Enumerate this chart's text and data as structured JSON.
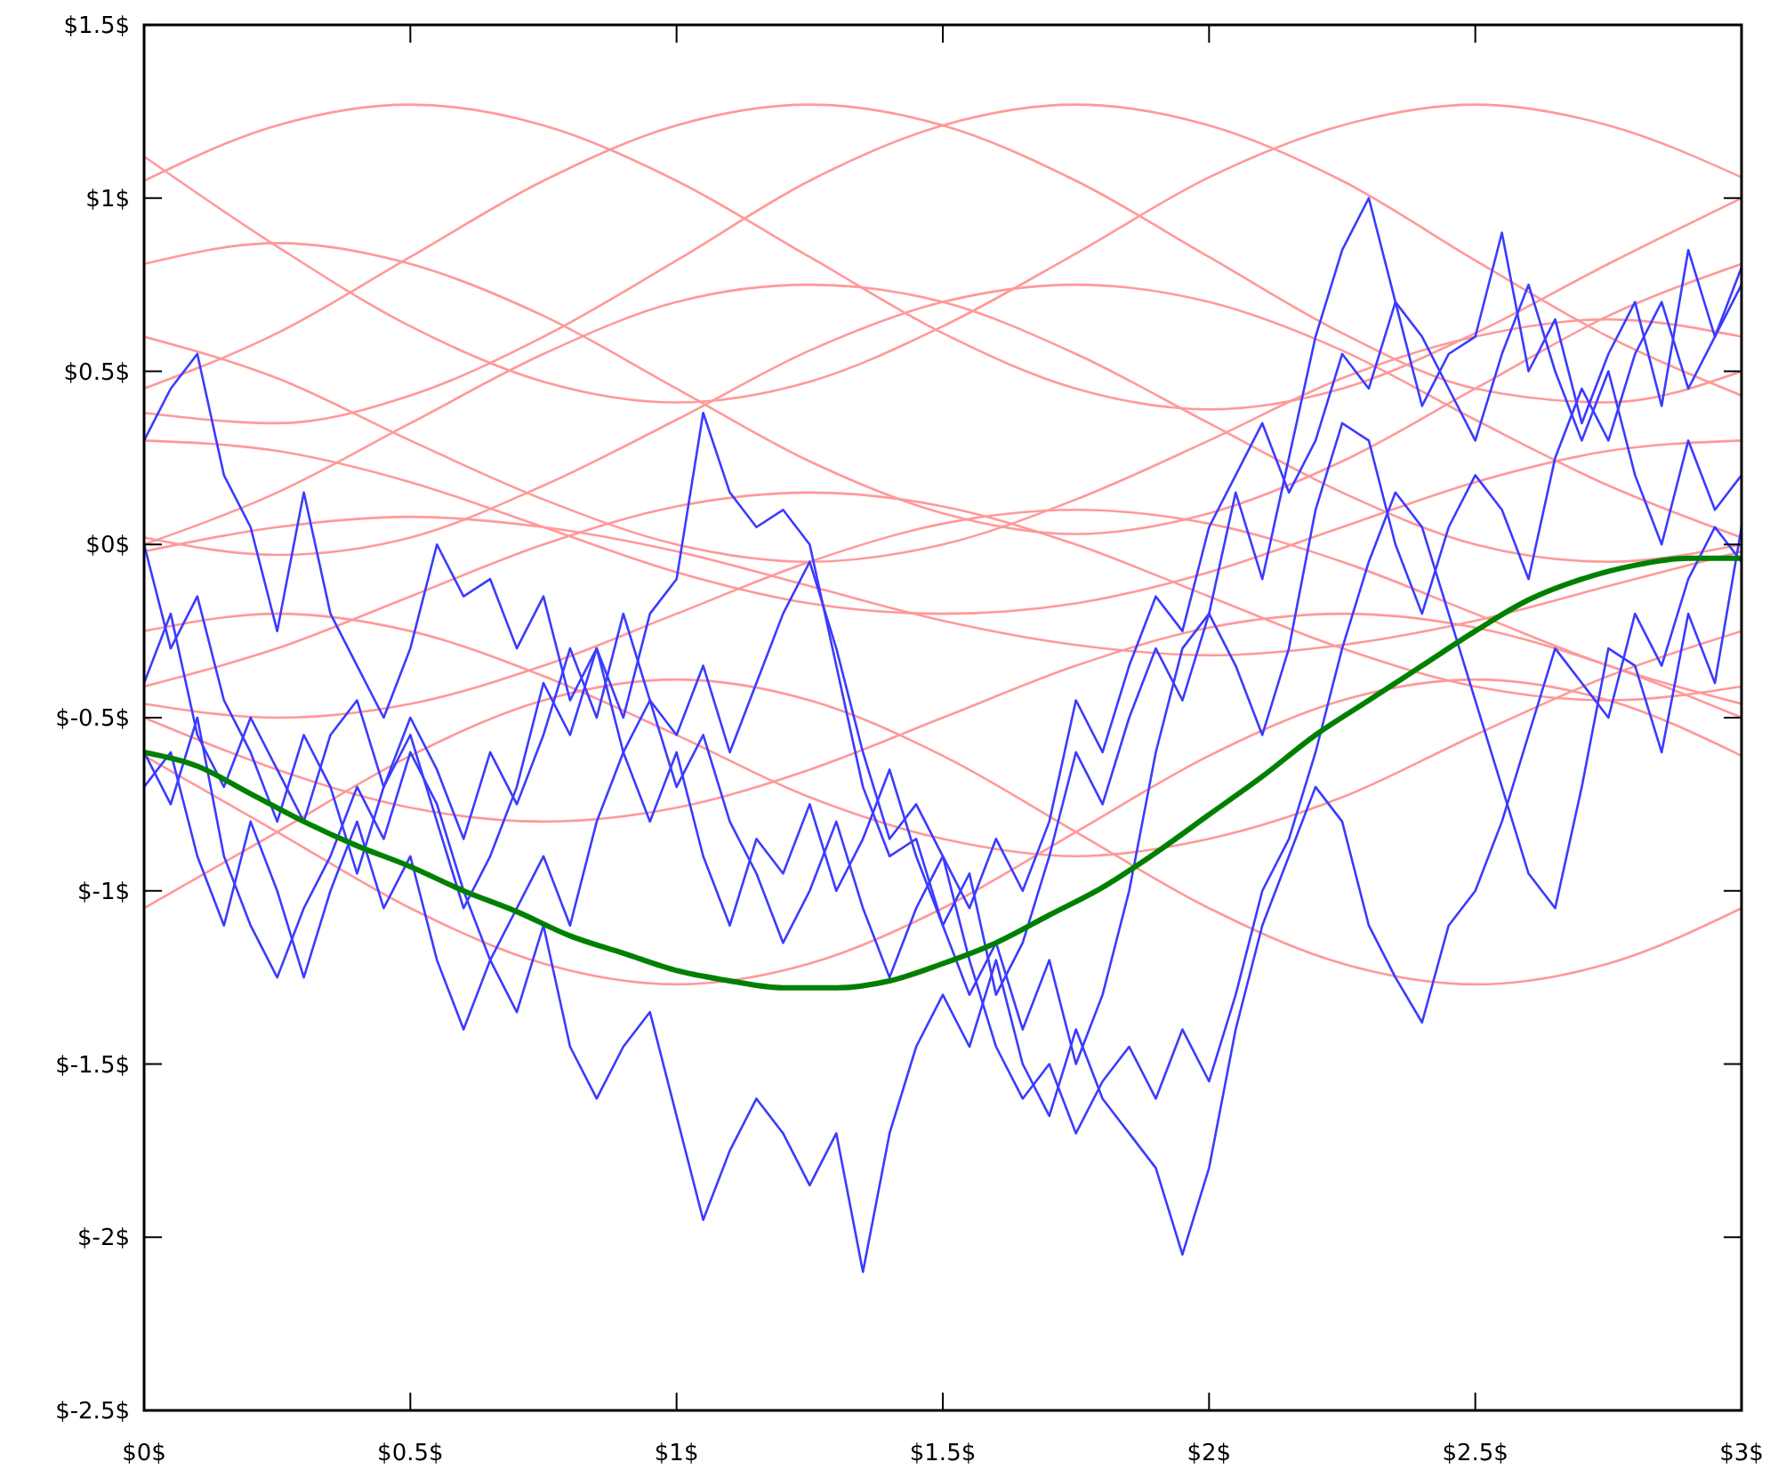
{
  "chart_data": {
    "type": "line",
    "xlim": [
      0,
      3
    ],
    "ylim": [
      -2.5,
      1.5
    ],
    "xticks": [
      {
        "value": 0,
        "label": "$0$"
      },
      {
        "value": 0.5,
        "label": "$0.5$"
      },
      {
        "value": 1,
        "label": "$1$"
      },
      {
        "value": 1.5,
        "label": "$1.5$"
      },
      {
        "value": 2,
        "label": "$2$"
      },
      {
        "value": 2.5,
        "label": "$2.5$"
      },
      {
        "value": 3,
        "label": "$3$"
      }
    ],
    "yticks": [
      {
        "value": -2.5,
        "label": "$-2.5$"
      },
      {
        "value": -2,
        "label": "$-2$"
      },
      {
        "value": -1.5,
        "label": "$-1.5$"
      },
      {
        "value": -1,
        "label": "$-1$"
      },
      {
        "value": -0.5,
        "label": "$-0.5$"
      },
      {
        "value": 0,
        "label": "$0$"
      },
      {
        "value": 0.5,
        "label": "$0.5$"
      },
      {
        "value": 1,
        "label": "$1$"
      },
      {
        "value": 1.5,
        "label": "$1.5$"
      }
    ],
    "grid": false,
    "marker": "none",
    "line_style": "solid",
    "x": [
      0,
      0.05,
      0.1,
      0.15,
      0.2,
      0.25,
      0.3,
      0.35,
      0.4,
      0.45,
      0.5,
      0.55,
      0.6,
      0.65,
      0.7,
      0.75,
      0.8,
      0.85,
      0.9,
      0.95,
      1,
      1.05,
      1.1,
      1.15,
      1.2,
      1.25,
      1.3,
      1.35,
      1.4,
      1.45,
      1.5,
      1.55,
      1.6,
      1.65,
      1.7,
      1.75,
      1.8,
      1.85,
      1.9,
      1.95,
      2,
      2.05,
      2.1,
      2.15,
      2.2,
      2.25,
      2.3,
      2.35,
      2.4,
      2.45,
      2.5,
      2.55,
      2.6,
      2.65,
      2.7,
      2.75,
      2.8,
      2.85,
      2.9,
      2.95,
      3
    ],
    "series": [
      {
        "color": "#ff9999",
        "x": [
          0,
          0.25,
          0.5,
          0.75,
          1,
          1.25,
          1.5,
          1.75,
          2,
          2.25,
          2.5,
          2.75,
          3
        ],
        "values": [
          1.05,
          1.21,
          1.27,
          1.21,
          1.05,
          0.83,
          0.61,
          0.45,
          0.39,
          0.45,
          0.61,
          0.81,
          1.0
        ]
      },
      {
        "color": "#ff9999",
        "x": [
          0,
          0.25,
          0.5,
          0.75,
          1,
          1.25,
          1.5,
          1.75,
          2,
          2.25,
          2.5,
          2.75,
          3
        ],
        "values": [
          0.45,
          0.61,
          0.83,
          1.05,
          1.21,
          1.27,
          1.21,
          1.05,
          0.83,
          0.61,
          0.45,
          0.41,
          0.5
        ]
      },
      {
        "color": "#ff9999",
        "x": [
          0,
          0.25,
          0.5,
          0.75,
          1,
          1.25,
          1.5,
          1.75,
          2,
          2.25,
          2.5,
          2.75,
          3
        ],
        "values": [
          0.38,
          0.35,
          0.43,
          0.6,
          0.82,
          1.05,
          1.21,
          1.27,
          1.21,
          1.05,
          0.82,
          0.6,
          0.43
        ]
      },
      {
        "color": "#ff9999",
        "x": [
          0,
          0.25,
          0.5,
          0.75,
          1,
          1.25,
          1.5,
          1.75,
          2,
          2.25,
          2.5,
          2.75,
          3
        ],
        "values": [
          1.12,
          0.86,
          0.63,
          0.47,
          0.41,
          0.47,
          0.63,
          0.84,
          1.06,
          1.21,
          1.27,
          1.21,
          1.06
        ]
      },
      {
        "color": "#ff9999",
        "x": [
          0,
          0.25,
          0.5,
          0.75,
          1,
          1.25,
          1.5,
          1.75,
          2,
          2.25,
          2.5,
          2.75,
          3
        ],
        "values": [
          -0.61,
          -0.83,
          -1.05,
          -1.21,
          -1.27,
          -1.21,
          -1.05,
          -0.83,
          -0.61,
          -0.45,
          -0.39,
          -0.45,
          -0.61
        ]
      },
      {
        "color": "#ff9999",
        "x": [
          0,
          0.25,
          0.5,
          0.75,
          1,
          1.25,
          1.5,
          1.75,
          2,
          2.25,
          2.5,
          2.75,
          3
        ],
        "values": [
          -1.05,
          -0.83,
          -0.61,
          -0.45,
          -0.39,
          -0.45,
          -0.61,
          -0.83,
          -1.05,
          -1.21,
          -1.27,
          -1.21,
          -1.05
        ]
      },
      {
        "color": "#ff9999",
        "x": [
          0,
          0.25,
          0.5,
          0.75,
          1,
          1.25,
          1.5,
          1.75,
          2,
          2.25,
          2.5,
          2.75,
          3
        ],
        "values": [
          -0.25,
          -0.2,
          -0.25,
          -0.38,
          -0.55,
          -0.73,
          -0.85,
          -0.9,
          -0.85,
          -0.73,
          -0.55,
          -0.38,
          -0.25
        ]
      },
      {
        "color": "#ff9999",
        "x": [
          0,
          0.25,
          0.5,
          0.75,
          1,
          1.25,
          1.5,
          1.75,
          2,
          2.25,
          2.5,
          2.75,
          3
        ],
        "values": [
          -0.5,
          -0.65,
          -0.76,
          -0.8,
          -0.76,
          -0.65,
          -0.5,
          -0.35,
          -0.24,
          -0.2,
          -0.24,
          -0.35,
          -0.5
        ]
      },
      {
        "color": "#ff9999",
        "x": [
          0,
          0.25,
          0.5,
          0.75,
          1,
          1.25,
          1.5,
          1.75,
          2,
          2.25,
          2.5,
          2.75,
          3
        ],
        "values": [
          0.81,
          0.87,
          0.81,
          0.66,
          0.45,
          0.24,
          0.09,
          0.03,
          0.09,
          0.24,
          0.45,
          0.66,
          0.81
        ]
      },
      {
        "color": "#ff9999",
        "x": [
          0,
          0.25,
          0.5,
          0.75,
          1,
          1.25,
          1.5,
          1.75,
          2,
          2.25,
          2.5,
          2.75,
          3
        ],
        "values": [
          0.0,
          0.15,
          0.35,
          0.55,
          0.7,
          0.75,
          0.7,
          0.55,
          0.35,
          0.15,
          0.0,
          -0.05,
          0.0
        ]
      },
      {
        "color": "#ff9999",
        "x": [
          0,
          0.25,
          0.5,
          0.75,
          1,
          1.25,
          1.5,
          1.75,
          2,
          2.25,
          2.5,
          2.75,
          3
        ],
        "values": [
          0.02,
          -0.03,
          0.02,
          0.17,
          0.36,
          0.56,
          0.7,
          0.75,
          0.7,
          0.56,
          0.36,
          0.17,
          0.02
        ]
      },
      {
        "color": "#ff9999",
        "x": [
          0,
          0.25,
          0.5,
          0.75,
          1,
          1.25,
          1.5,
          1.75,
          2,
          2.25,
          2.5,
          2.75,
          3
        ],
        "values": [
          0.6,
          0.48,
          0.3,
          0.13,
          0.0,
          -0.05,
          0.0,
          0.13,
          0.3,
          0.48,
          0.6,
          0.65,
          0.6
        ]
      },
      {
        "color": "#ff9999",
        "x": [
          0,
          0.25,
          0.5,
          0.75,
          1,
          1.25,
          1.5,
          1.75,
          2,
          2.25,
          2.5,
          2.75,
          3
        ],
        "values": [
          0.3,
          0.27,
          0.18,
          0.05,
          -0.08,
          -0.17,
          -0.2,
          -0.17,
          -0.08,
          0.05,
          0.18,
          0.27,
          0.3
        ]
      },
      {
        "color": "#ff9999",
        "x": [
          0,
          0.25,
          0.5,
          0.75,
          1,
          1.25,
          1.5,
          1.75,
          2,
          2.25,
          2.5,
          2.75,
          3
        ],
        "values": [
          -0.41,
          -0.3,
          -0.15,
          0.0,
          0.11,
          0.15,
          0.11,
          0.0,
          -0.15,
          -0.3,
          -0.41,
          -0.45,
          -0.41
        ]
      },
      {
        "color": "#ff9999",
        "x": [
          0,
          0.25,
          0.5,
          0.75,
          1,
          1.25,
          1.5,
          1.75,
          2,
          2.25,
          2.5,
          2.75,
          3
        ],
        "values": [
          -0.46,
          -0.5,
          -0.46,
          -0.35,
          -0.2,
          -0.05,
          0.06,
          0.1,
          0.06,
          -0.05,
          -0.2,
          -0.35,
          -0.46
        ]
      },
      {
        "color": "#ff9999",
        "x": [
          0,
          0.25,
          0.5,
          0.75,
          1,
          1.25,
          1.5,
          1.75,
          2,
          2.25,
          2.5,
          2.75,
          3
        ],
        "values": [
          -0.02,
          0.05,
          0.08,
          0.05,
          -0.02,
          -0.12,
          -0.22,
          -0.29,
          -0.32,
          -0.29,
          -0.22,
          -0.12,
          -0.02
        ]
      },
      {
        "color": "#3b3bff",
        "values": [
          0.3,
          0.45,
          0.55,
          0.2,
          0.05,
          -0.25,
          0.15,
          -0.2,
          -0.35,
          -0.5,
          -0.3,
          0.0,
          -0.15,
          -0.1,
          -0.3,
          -0.15,
          -0.45,
          -0.3,
          -0.5,
          -0.2,
          -0.1,
          0.38,
          0.15,
          0.05,
          0.1,
          0.0,
          -0.35,
          -0.7,
          -0.9,
          -0.85,
          -1.1,
          -1.3,
          -1.15,
          -1.4,
          -1.2,
          -1.5,
          -1.3,
          -1.0,
          -0.6,
          -0.3,
          -0.2,
          0.15,
          -0.1,
          0.25,
          0.6,
          0.85,
          1.0,
          0.7,
          0.4,
          0.55,
          0.6,
          0.9,
          0.5,
          0.65,
          0.35,
          0.55,
          0.7,
          0.4,
          0.85,
          0.6,
          0.75
        ]
      },
      {
        "color": "#3b3bff",
        "values": [
          -0.7,
          -0.6,
          -0.9,
          -1.1,
          -0.8,
          -1.0,
          -1.25,
          -1.0,
          -0.8,
          -1.05,
          -0.9,
          -1.2,
          -1.4,
          -1.2,
          -1.35,
          -1.1,
          -1.45,
          -1.6,
          -1.45,
          -1.35,
          -1.65,
          -1.95,
          -1.75,
          -1.6,
          -1.7,
          -1.85,
          -1.7,
          -2.1,
          -1.7,
          -1.45,
          -1.3,
          -1.45,
          -1.2,
          -1.5,
          -1.65,
          -1.4,
          -1.6,
          -1.7,
          -1.8,
          -2.05,
          -1.8,
          -1.4,
          -1.1,
          -0.9,
          -0.7,
          -0.8,
          -1.1,
          -1.25,
          -1.38,
          -1.1,
          -1.0,
          -0.8,
          -0.55,
          -0.3,
          -0.4,
          -0.5,
          -0.2,
          -0.35,
          -0.1,
          0.05,
          -0.05
        ]
      },
      {
        "color": "#3b3bff",
        "values": [
          -0.4,
          -0.2,
          -0.55,
          -0.7,
          -0.5,
          -0.65,
          -0.8,
          -0.55,
          -0.45,
          -0.7,
          -0.55,
          -0.8,
          -1.05,
          -0.9,
          -0.7,
          -0.4,
          -0.55,
          -0.3,
          -0.6,
          -0.8,
          -0.6,
          -0.9,
          -1.1,
          -0.85,
          -0.95,
          -0.75,
          -1.0,
          -0.85,
          -0.65,
          -0.9,
          -1.1,
          -0.95,
          -1.3,
          -1.15,
          -0.9,
          -0.6,
          -0.75,
          -0.5,
          -0.3,
          -0.45,
          -0.2,
          -0.35,
          -0.55,
          -0.3,
          0.1,
          0.35,
          0.3,
          0.0,
          -0.2,
          0.05,
          0.2,
          0.1,
          -0.1,
          0.25,
          0.45,
          0.3,
          0.55,
          0.7,
          0.45,
          0.6,
          0.8
        ]
      },
      {
        "color": "#3b3bff",
        "values": [
          -0.6,
          -0.75,
          -0.5,
          -0.9,
          -1.1,
          -1.25,
          -1.05,
          -0.9,
          -0.7,
          -0.85,
          -0.6,
          -0.75,
          -1.0,
          -1.2,
          -1.05,
          -0.9,
          -1.1,
          -0.8,
          -0.6,
          -0.45,
          -0.7,
          -0.55,
          -0.8,
          -0.95,
          -1.15,
          -1.0,
          -0.8,
          -1.05,
          -1.25,
          -1.05,
          -0.9,
          -1.2,
          -1.45,
          -1.6,
          -1.5,
          -1.7,
          -1.55,
          -1.45,
          -1.6,
          -1.4,
          -1.55,
          -1.3,
          -1.0,
          -0.85,
          -0.6,
          -0.3,
          -0.05,
          0.15,
          0.05,
          -0.2,
          -0.45,
          -0.7,
          -0.95,
          -1.05,
          -0.7,
          -0.3,
          -0.35,
          -0.6,
          -0.2,
          -0.4,
          0.05
        ]
      },
      {
        "color": "#3b3bff",
        "values": [
          0.0,
          -0.3,
          -0.15,
          -0.45,
          -0.6,
          -0.8,
          -0.55,
          -0.7,
          -0.95,
          -0.7,
          -0.5,
          -0.65,
          -0.85,
          -0.6,
          -0.75,
          -0.55,
          -0.3,
          -0.5,
          -0.2,
          -0.45,
          -0.55,
          -0.35,
          -0.6,
          -0.4,
          -0.2,
          -0.05,
          -0.3,
          -0.6,
          -0.85,
          -0.75,
          -0.9,
          -1.05,
          -0.85,
          -1.0,
          -0.8,
          -0.45,
          -0.6,
          -0.35,
          -0.15,
          -0.25,
          0.05,
          0.2,
          0.35,
          0.15,
          0.3,
          0.55,
          0.45,
          0.7,
          0.6,
          0.45,
          0.3,
          0.55,
          0.75,
          0.5,
          0.3,
          0.5,
          0.2,
          0.0,
          0.3,
          0.1,
          0.2
        ]
      },
      {
        "color": "#008000",
        "x": [
          0,
          0.1,
          0.2,
          0.3,
          0.4,
          0.5,
          0.6,
          0.7,
          0.8,
          0.9,
          1,
          1.1,
          1.2,
          1.3,
          1.4,
          1.5,
          1.6,
          1.7,
          1.8,
          1.9,
          2,
          2.1,
          2.2,
          2.3,
          2.4,
          2.5,
          2.6,
          2.7,
          2.8,
          2.9,
          3
        ],
        "values": [
          -0.6,
          -0.64,
          -0.72,
          -0.8,
          -0.87,
          -0.93,
          -1.0,
          -1.06,
          -1.13,
          -1.18,
          -1.23,
          -1.26,
          -1.28,
          -1.28,
          -1.26,
          -1.21,
          -1.15,
          -1.07,
          -0.99,
          -0.89,
          -0.78,
          -0.67,
          -0.55,
          -0.45,
          -0.35,
          -0.25,
          -0.16,
          -0.1,
          -0.06,
          -0.04,
          -0.04
        ]
      }
    ]
  }
}
